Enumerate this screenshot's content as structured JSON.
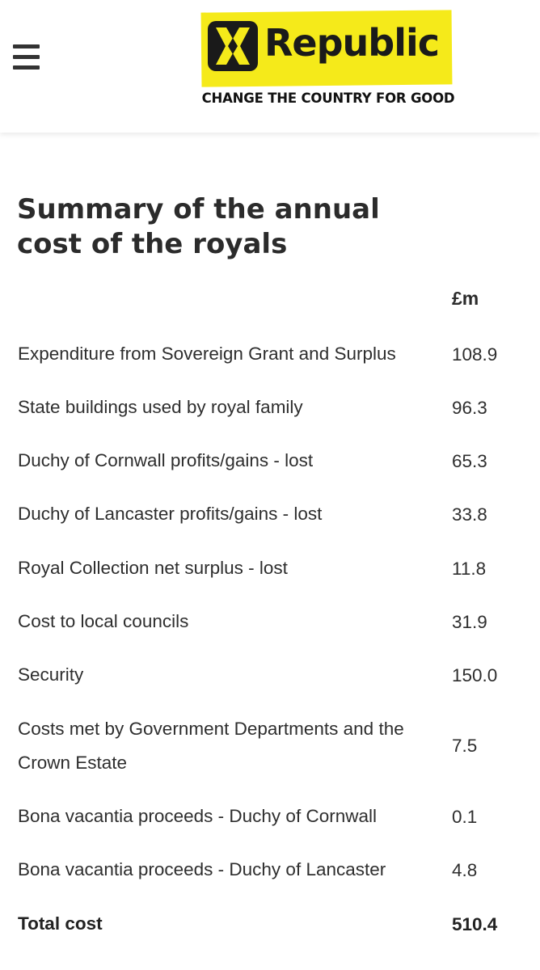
{
  "header": {
    "menu_icon": "hamburger-menu-icon",
    "logo": {
      "name": "Republic",
      "tagline": "CHANGE THE COUNTRY FOR GOOD",
      "background_color": "#f5ea1a",
      "mark_icon": "republic-x-mark-icon"
    }
  },
  "main": {
    "title": "Summary of the annual cost of the royals",
    "unit_header": "£m",
    "rows": [
      {
        "label": "Expenditure from Sovereign Grant and Surplus",
        "value": "108.9"
      },
      {
        "label": "State buildings used by royal family",
        "value": "96.3"
      },
      {
        "label": "Duchy of Cornwall profits/gains - lost",
        "value": "65.3"
      },
      {
        "label": "Duchy of Lancaster profits/gains - lost",
        "value": "33.8"
      },
      {
        "label": "Royal Collection net surplus - lost",
        "value": "11.8"
      },
      {
        "label": "Cost to local councils",
        "value": "31.9"
      },
      {
        "label": "Security",
        "value": "150.0"
      },
      {
        "label": "Costs met by Government Departments and the Crown Estate",
        "value": "7.5"
      },
      {
        "label": "Bona vacantia proceeds - Duchy of Cornwall",
        "value": "0.1"
      },
      {
        "label": "Bona vacantia proceeds - Duchy of Lancaster",
        "value": "4.8"
      }
    ],
    "total": {
      "label": "Total cost",
      "value": "510.4"
    }
  }
}
